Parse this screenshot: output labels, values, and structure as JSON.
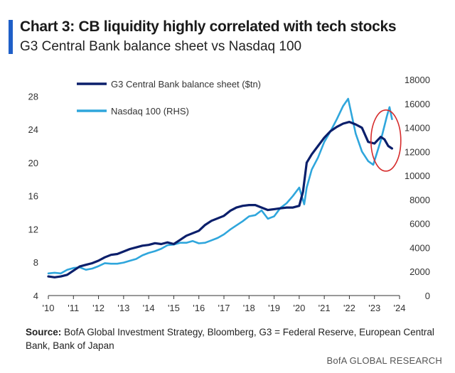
{
  "header": {
    "title": "Chart 3: CB liquidity highly correlated with tech stocks",
    "subtitle": "G3 Central Bank balance sheet vs Nasdaq 100",
    "accent_color": "#1f5fc8"
  },
  "chart_data": {
    "type": "line",
    "x_ticks": [
      "'10",
      "'11",
      "'12",
      "'13",
      "'14",
      "'15",
      "'16",
      "'17",
      "'18",
      "'19",
      "'20",
      "'21",
      "'22",
      "'23",
      "'24"
    ],
    "x_range": [
      2010,
      2024
    ],
    "y_left": {
      "ticks": [
        "4",
        "8",
        "12",
        "16",
        "20",
        "24",
        "28"
      ],
      "range": [
        4,
        30
      ]
    },
    "y_right": {
      "ticks": [
        "0",
        "2000",
        "4000",
        "6000",
        "8000",
        "10000",
        "12000",
        "14000",
        "16000",
        "18000"
      ],
      "range": [
        0,
        18000
      ]
    },
    "grid": false,
    "legend_position": "top-left",
    "series": [
      {
        "name": "G3 Central Bank balance sheet ($tn)",
        "axis": "left",
        "color": "#0b1f6b",
        "x": [
          2010.0,
          2010.25,
          2010.5,
          2010.75,
          2011.0,
          2011.25,
          2011.5,
          2011.75,
          2012.0,
          2012.25,
          2012.5,
          2012.75,
          2013.0,
          2013.25,
          2013.5,
          2013.75,
          2014.0,
          2014.25,
          2014.5,
          2014.75,
          2015.0,
          2015.25,
          2015.5,
          2015.75,
          2016.0,
          2016.25,
          2016.5,
          2016.75,
          2017.0,
          2017.25,
          2017.5,
          2017.75,
          2018.0,
          2018.25,
          2018.5,
          2018.75,
          2019.0,
          2019.25,
          2019.5,
          2019.75,
          2020.0,
          2020.15,
          2020.3,
          2020.5,
          2020.75,
          2021.0,
          2021.25,
          2021.5,
          2021.75,
          2022.0,
          2022.25,
          2022.5,
          2022.75,
          2023.0,
          2023.25,
          2023.4,
          2023.55,
          2023.7
        ],
        "values": [
          6.3,
          6.2,
          6.3,
          6.5,
          7.0,
          7.5,
          7.7,
          7.9,
          8.2,
          8.6,
          8.9,
          9.0,
          9.3,
          9.6,
          9.8,
          10.0,
          10.1,
          10.3,
          10.2,
          10.4,
          10.2,
          10.7,
          11.2,
          11.5,
          11.8,
          12.5,
          13.0,
          13.3,
          13.6,
          14.2,
          14.6,
          14.8,
          14.9,
          14.9,
          14.6,
          14.3,
          14.4,
          14.5,
          14.6,
          14.6,
          14.8,
          16.5,
          20.0,
          21.0,
          22.0,
          23.0,
          23.8,
          24.3,
          24.7,
          24.9,
          24.6,
          24.2,
          22.5,
          22.3,
          23.1,
          22.8,
          22.0,
          21.7
        ]
      },
      {
        "name": "Nasdaq 100 (RHS)",
        "axis": "right",
        "color": "#2fa6dc",
        "x": [
          2010.0,
          2010.25,
          2010.5,
          2010.75,
          2011.0,
          2011.25,
          2011.5,
          2011.75,
          2012.0,
          2012.25,
          2012.5,
          2012.75,
          2013.0,
          2013.25,
          2013.5,
          2013.75,
          2014.0,
          2014.25,
          2014.5,
          2014.75,
          2015.0,
          2015.25,
          2015.5,
          2015.75,
          2016.0,
          2016.25,
          2016.5,
          2016.75,
          2017.0,
          2017.25,
          2017.5,
          2017.75,
          2018.0,
          2018.25,
          2018.5,
          2018.75,
          2019.0,
          2019.25,
          2019.5,
          2019.75,
          2020.0,
          2020.2,
          2020.3,
          2020.5,
          2020.75,
          2021.0,
          2021.25,
          2021.5,
          2021.75,
          2021.95,
          2022.25,
          2022.5,
          2022.75,
          2022.95,
          2023.25,
          2023.5,
          2023.6,
          2023.7
        ],
        "values": [
          1850,
          1900,
          1850,
          2150,
          2300,
          2350,
          2150,
          2250,
          2450,
          2700,
          2650,
          2650,
          2750,
          2900,
          3050,
          3350,
          3550,
          3700,
          3900,
          4200,
          4250,
          4400,
          4400,
          4550,
          4350,
          4400,
          4600,
          4800,
          5100,
          5500,
          5850,
          6200,
          6600,
          6700,
          7100,
          6400,
          6600,
          7300,
          7700,
          8300,
          9000,
          7600,
          9000,
          10500,
          11500,
          12800,
          13700,
          14700,
          15800,
          16400,
          13500,
          12000,
          11200,
          10900,
          12900,
          15000,
          15700,
          14700
        ]
      }
    ],
    "annotation": {
      "shape": "circle",
      "color": "#d62b2b",
      "target": "2023 Nasdaq 100 rebound"
    }
  },
  "source": {
    "label": "Source:",
    "text": " BofA Global Investment Strategy, Bloomberg, G3 = Federal Reserve, European Central Bank, Bank of Japan"
  },
  "footer": {
    "brand": "BofA GLOBAL RESEARCH"
  }
}
